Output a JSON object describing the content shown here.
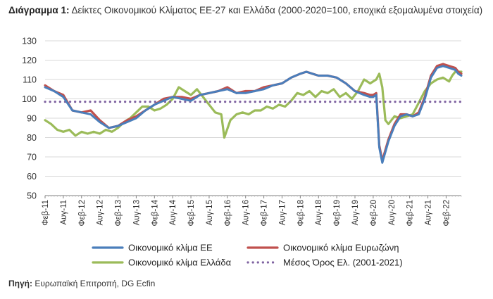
{
  "title": {
    "label": "Διάγραμμα 1:",
    "text": "Δείκτες Οικονομικού Κλίματος ΕΕ-27 και Ελλάδα (2000-2020=100, εποχικά εξομαλυμένα στοιχεία)"
  },
  "source": {
    "label": "Πηγή:",
    "text": "Ευρωπαϊκή Επιτροπή, DG Ecfin"
  },
  "colors": {
    "eu": "#4a7ebb",
    "euro": "#c0504d",
    "greece": "#9bbb59",
    "mean": "#8064a2",
    "grid": "#d9d9d9",
    "axis": "#7f7f7f"
  },
  "chart_data": {
    "type": "line",
    "ylim": [
      50,
      130
    ],
    "yticks": [
      50,
      60,
      70,
      80,
      90,
      100,
      110,
      120,
      130
    ],
    "grid": true,
    "legend_position": "bottom",
    "xticks": [
      "Φεβ-11",
      "Αυγ-11",
      "Φεβ-12",
      "Αυγ-12",
      "Φεβ-13",
      "Αυγ-13",
      "Φεβ-14",
      "Αυγ-14",
      "Φεβ-15",
      "Αυγ-15",
      "Φεβ-16",
      "Αυγ-16",
      "Φεβ-17",
      "Αυγ-17",
      "Φεβ-18",
      "Αυγ-18",
      "Φεβ-19",
      "Αυγ-19",
      "Φεβ-20",
      "Αυγ-20",
      "Φεβ-21",
      "Αυγ-21",
      "Φεβ-22"
    ],
    "x_start": "Φεβ-11",
    "x_end": "Φεβ-22",
    "series": [
      {
        "name": "Οικονομικό κλίμα ΕΕ",
        "color_key": "eu",
        "style": "solid",
        "points": [
          [
            0,
            106
          ],
          [
            3,
            104
          ],
          [
            6,
            101
          ],
          [
            9,
            94
          ],
          [
            12,
            93
          ],
          [
            15,
            92
          ],
          [
            18,
            88
          ],
          [
            21,
            85
          ],
          [
            24,
            86
          ],
          [
            27,
            88
          ],
          [
            30,
            90
          ],
          [
            33,
            94
          ],
          [
            36,
            97
          ],
          [
            39,
            99
          ],
          [
            42,
            101
          ],
          [
            45,
            100
          ],
          [
            48,
            99
          ],
          [
            51,
            102
          ],
          [
            54,
            103
          ],
          [
            57,
            104
          ],
          [
            60,
            105
          ],
          [
            63,
            103
          ],
          [
            66,
            103
          ],
          [
            69,
            104
          ],
          [
            72,
            105
          ],
          [
            75,
            107
          ],
          [
            78,
            108
          ],
          [
            81,
            111
          ],
          [
            84,
            113
          ],
          [
            86,
            114
          ],
          [
            88,
            113
          ],
          [
            90,
            112
          ],
          [
            93,
            112
          ],
          [
            96,
            111
          ],
          [
            99,
            108
          ],
          [
            102,
            104
          ],
          [
            105,
            102
          ],
          [
            107,
            101
          ],
          [
            108,
            101
          ],
          [
            109,
            102
          ],
          [
            110,
            75
          ],
          [
            111,
            67
          ],
          [
            113,
            78
          ],
          [
            115,
            86
          ],
          [
            117,
            91
          ],
          [
            119,
            92
          ],
          [
            121,
            91
          ],
          [
            123,
            92
          ],
          [
            125,
            100
          ],
          [
            127,
            111
          ],
          [
            129,
            116
          ],
          [
            131,
            117
          ],
          [
            133,
            116
          ],
          [
            135,
            115
          ],
          [
            136,
            113
          ],
          [
            137,
            112
          ]
        ]
      },
      {
        "name": "Οικονομικό κλίμα Ευρωζώνη",
        "color_key": "euro",
        "style": "solid",
        "points": [
          [
            0,
            107
          ],
          [
            3,
            104
          ],
          [
            6,
            102
          ],
          [
            9,
            94
          ],
          [
            12,
            93
          ],
          [
            15,
            94
          ],
          [
            18,
            89
          ],
          [
            21,
            85
          ],
          [
            24,
            86
          ],
          [
            27,
            89
          ],
          [
            30,
            91
          ],
          [
            33,
            94
          ],
          [
            36,
            97
          ],
          [
            39,
            100
          ],
          [
            42,
            101
          ],
          [
            45,
            101
          ],
          [
            48,
            100
          ],
          [
            51,
            102
          ],
          [
            54,
            103
          ],
          [
            57,
            104
          ],
          [
            60,
            106
          ],
          [
            63,
            103
          ],
          [
            66,
            104
          ],
          [
            69,
            104
          ],
          [
            72,
            106
          ],
          [
            75,
            107
          ],
          [
            78,
            108
          ],
          [
            81,
            111
          ],
          [
            84,
            113
          ],
          [
            86,
            114
          ],
          [
            88,
            113
          ],
          [
            90,
            112
          ],
          [
            93,
            112
          ],
          [
            96,
            111
          ],
          [
            99,
            108
          ],
          [
            102,
            104
          ],
          [
            105,
            103
          ],
          [
            107,
            102
          ],
          [
            108,
            102
          ],
          [
            109,
            103
          ],
          [
            110,
            76
          ],
          [
            111,
            68
          ],
          [
            113,
            79
          ],
          [
            115,
            87
          ],
          [
            117,
            92
          ],
          [
            119,
            92
          ],
          [
            121,
            91
          ],
          [
            123,
            93
          ],
          [
            125,
            101
          ],
          [
            127,
            112
          ],
          [
            129,
            117
          ],
          [
            131,
            118
          ],
          [
            133,
            117
          ],
          [
            135,
            116
          ],
          [
            136,
            114
          ],
          [
            137,
            113
          ]
        ]
      },
      {
        "name": "Οικονομικό κλίμα Ελλάδα",
        "color_key": "greece",
        "style": "solid",
        "points": [
          [
            0,
            89
          ],
          [
            2,
            87
          ],
          [
            4,
            84
          ],
          [
            6,
            83
          ],
          [
            8,
            84
          ],
          [
            10,
            81
          ],
          [
            12,
            83
          ],
          [
            14,
            82
          ],
          [
            16,
            83
          ],
          [
            18,
            82
          ],
          [
            20,
            84
          ],
          [
            22,
            83
          ],
          [
            24,
            85
          ],
          [
            26,
            88
          ],
          [
            28,
            90
          ],
          [
            30,
            93
          ],
          [
            32,
            96
          ],
          [
            34,
            96
          ],
          [
            36,
            94
          ],
          [
            38,
            95
          ],
          [
            40,
            97
          ],
          [
            42,
            100
          ],
          [
            44,
            106
          ],
          [
            46,
            104
          ],
          [
            48,
            102
          ],
          [
            50,
            105
          ],
          [
            52,
            101
          ],
          [
            54,
            97
          ],
          [
            56,
            93
          ],
          [
            58,
            92
          ],
          [
            59,
            80
          ],
          [
            61,
            89
          ],
          [
            63,
            92
          ],
          [
            65,
            93
          ],
          [
            67,
            92
          ],
          [
            69,
            94
          ],
          [
            71,
            94
          ],
          [
            73,
            96
          ],
          [
            75,
            95
          ],
          [
            77,
            97
          ],
          [
            79,
            96
          ],
          [
            81,
            99
          ],
          [
            83,
            103
          ],
          [
            85,
            102
          ],
          [
            87,
            104
          ],
          [
            89,
            101
          ],
          [
            91,
            104
          ],
          [
            93,
            103
          ],
          [
            95,
            105
          ],
          [
            97,
            101
          ],
          [
            99,
            103
          ],
          [
            101,
            100
          ],
          [
            103,
            104
          ],
          [
            105,
            110
          ],
          [
            107,
            108
          ],
          [
            109,
            110
          ],
          [
            110,
            113
          ],
          [
            111,
            106
          ],
          [
            112,
            89
          ],
          [
            113,
            87
          ],
          [
            115,
            91
          ],
          [
            117,
            90
          ],
          [
            119,
            91
          ],
          [
            121,
            92
          ],
          [
            123,
            98
          ],
          [
            125,
            104
          ],
          [
            127,
            108
          ],
          [
            129,
            110
          ],
          [
            131,
            111
          ],
          [
            133,
            109
          ],
          [
            134,
            112
          ],
          [
            135,
            114
          ],
          [
            137,
            114
          ]
        ]
      },
      {
        "name": "Μέσος Όρος Ελ. (2001-2021)",
        "color_key": "mean",
        "style": "dotted",
        "points": [
          [
            0,
            98.5
          ],
          [
            137,
            98.5
          ]
        ]
      }
    ]
  }
}
